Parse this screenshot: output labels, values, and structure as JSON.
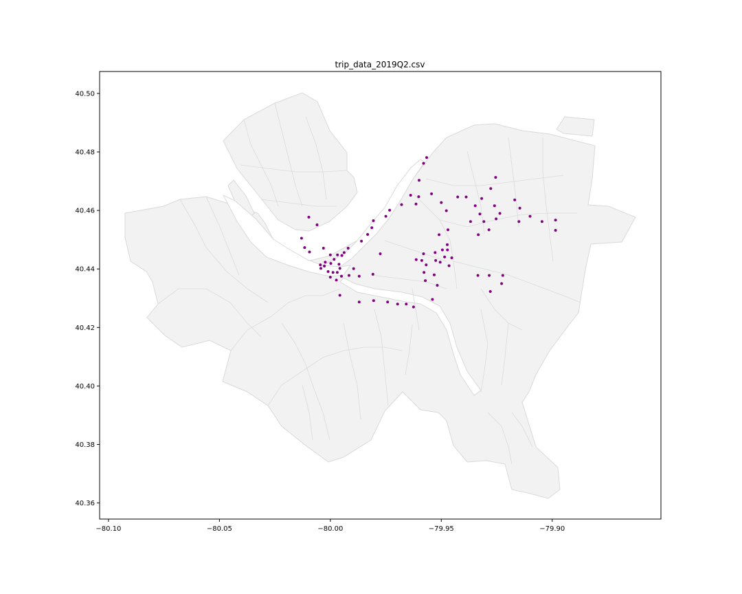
{
  "chart_data": {
    "type": "scatter",
    "title": "trip_data_2019Q2.csv",
    "xlabel": "",
    "ylabel": "",
    "xlim": [
      -80.104,
      -79.851
    ],
    "ylim": [
      40.3545,
      40.5075
    ],
    "grid": false,
    "x_ticks": [
      -80.1,
      -80.05,
      -80.0,
      -79.95,
      -79.9
    ],
    "x_tick_labels": [
      "−80.10",
      "−80.05",
      "−80.00",
      "−79.95",
      "−79.90"
    ],
    "y_ticks": [
      40.36,
      40.38,
      40.4,
      40.42,
      40.44,
      40.46,
      40.48,
      40.5
    ],
    "y_tick_labels": [
      "40.36",
      "40.38",
      "40.40",
      "40.42",
      "40.44",
      "40.46",
      "40.48",
      "40.50"
    ],
    "background_map": "city neighborhood boundaries",
    "colors": {
      "points": "#800080",
      "map_fill": "#f2f2f2",
      "map_edge": "#d9d9d9",
      "river": "#ffffff"
    },
    "series": [
      {
        "points": [
          [
            -79.9566,
            40.4781
          ],
          [
            -79.958,
            40.4761
          ],
          [
            -79.96,
            40.4703
          ],
          [
            -79.9255,
            40.4713
          ],
          [
            -79.9277,
            40.4675
          ],
          [
            -79.9544,
            40.4657
          ],
          [
            -79.9638,
            40.4652
          ],
          [
            -79.9602,
            40.4647
          ],
          [
            -79.9426,
            40.4646
          ],
          [
            -79.9388,
            40.4646
          ],
          [
            -79.9318,
            40.4641
          ],
          [
            -79.9169,
            40.4636
          ],
          [
            -79.95,
            40.4627
          ],
          [
            -79.9614,
            40.4622
          ],
          [
            -79.9679,
            40.462
          ],
          [
            -79.9347,
            40.4616
          ],
          [
            -79.926,
            40.4616
          ],
          [
            -79.9146,
            40.4608
          ],
          [
            -79.9733,
            40.4601
          ],
          [
            -79.9477,
            40.4599
          ],
          [
            -79.9326,
            40.4588
          ],
          [
            -79.9236,
            40.459
          ],
          [
            -79.975,
            40.458
          ],
          [
            -79.91,
            40.458
          ],
          [
            -79.9253,
            40.4571
          ],
          [
            -79.9806,
            40.4565
          ],
          [
            -79.9368,
            40.4562
          ],
          [
            -79.9308,
            40.4562
          ],
          [
            -79.915,
            40.4562
          ],
          [
            -79.9046,
            40.4562
          ],
          [
            -79.8985,
            40.4567
          ],
          [
            -80.0097,
            40.4577
          ],
          [
            -80.006,
            40.4551
          ],
          [
            -79.9813,
            40.4541
          ],
          [
            -79.947,
            40.4534
          ],
          [
            -79.9285,
            40.4534
          ],
          [
            -79.8985,
            40.4532
          ],
          [
            -79.9832,
            40.4518
          ],
          [
            -79.9333,
            40.4517
          ],
          [
            -79.951,
            40.4517
          ],
          [
            -80.013,
            40.4505
          ],
          [
            -79.986,
            40.4495
          ],
          [
            -79.9473,
            40.4483
          ],
          [
            -80.0116,
            40.4473
          ],
          [
            -80.0031,
            40.4471
          ],
          [
            -79.992,
            40.4471
          ],
          [
            -79.9495,
            40.4465
          ],
          [
            -79.9472,
            40.4465
          ],
          [
            -80.0094,
            40.4458
          ],
          [
            -79.9938,
            40.4456
          ],
          [
            -79.958,
            40.4452
          ],
          [
            -79.9528,
            40.4456
          ],
          [
            -79.9775,
            40.4452
          ],
          [
            -79.9968,
            40.4448
          ],
          [
            -80.0,
            40.4448
          ],
          [
            -79.9948,
            40.4446
          ],
          [
            -79.9485,
            40.4441
          ],
          [
            -79.9983,
            40.4433
          ],
          [
            -79.9613,
            40.4432
          ],
          [
            -79.9588,
            40.4429
          ],
          [
            -79.9525,
            40.4429
          ],
          [
            -79.9505,
            40.4423
          ],
          [
            -79.9453,
            40.4438
          ],
          [
            -80.0023,
            40.4423
          ],
          [
            -79.9998,
            40.4419
          ],
          [
            -79.9961,
            40.4416
          ],
          [
            -80.0045,
            40.4414
          ],
          [
            -79.9568,
            40.4414
          ],
          [
            -79.9465,
            40.4411
          ],
          [
            -80.0027,
            40.441
          ],
          [
            -80.0043,
            40.4402
          ],
          [
            -79.9957,
            40.4402
          ],
          [
            -79.9895,
            40.4401
          ],
          [
            -80.001,
            40.4391
          ],
          [
            -79.9988,
            40.4388
          ],
          [
            -79.9969,
            40.4388
          ],
          [
            -79.9578,
            40.4388
          ],
          [
            -79.9532,
            40.438
          ],
          [
            -79.9808,
            40.4382
          ],
          [
            -79.9916,
            40.4378
          ],
          [
            -79.987,
            40.4375
          ],
          [
            -80.0,
            40.4372
          ],
          [
            -79.995,
            40.4375
          ],
          [
            -79.9335,
            40.4378
          ],
          [
            -79.9284,
            40.4378
          ],
          [
            -79.9223,
            40.4378
          ],
          [
            -79.9973,
            40.4362
          ],
          [
            -79.9572,
            40.436
          ],
          [
            -79.9228,
            40.435
          ],
          [
            -79.9518,
            40.4344
          ],
          [
            -79.9279,
            40.4323
          ],
          [
            -79.9957,
            40.431
          ],
          [
            -79.954,
            40.4296
          ],
          [
            -79.9805,
            40.4292
          ],
          [
            -79.987,
            40.4287
          ],
          [
            -79.9742,
            40.4287
          ],
          [
            -79.9697,
            40.428
          ],
          [
            -79.9658,
            40.428
          ],
          [
            -79.9625,
            40.427
          ]
        ]
      }
    ]
  }
}
